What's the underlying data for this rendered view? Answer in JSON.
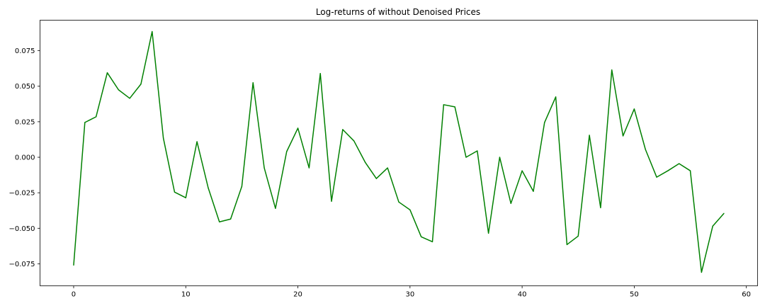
{
  "chart_data": {
    "type": "line",
    "title": "Log-returns of without Denoised Prices",
    "xlabel": "",
    "ylabel": "",
    "xlim": [
      -3,
      61
    ],
    "ylim": [
      -0.0905,
      0.0965
    ],
    "x_ticks": [
      0,
      10,
      20,
      30,
      40,
      50,
      60
    ],
    "x_tick_labels": [
      "0",
      "10",
      "20",
      "30",
      "40",
      "50",
      "60"
    ],
    "y_ticks": [
      0.075,
      0.05,
      0.025,
      0.0,
      -0.025,
      -0.05,
      -0.075
    ],
    "y_tick_labels": [
      "0.075",
      "0.050",
      "0.025",
      "0.000",
      "−0.025",
      "−0.050",
      "−0.075"
    ],
    "grid": false,
    "legend": "none",
    "series": [
      {
        "color": "#008000",
        "x": [
          0,
          1,
          2,
          3,
          4,
          5,
          6,
          7,
          8,
          9,
          10,
          11,
          12,
          13,
          14,
          15,
          16,
          17,
          18,
          19,
          20,
          21,
          22,
          23,
          24,
          25,
          26,
          27,
          28,
          29,
          30,
          31,
          32,
          33,
          34,
          35,
          36,
          37,
          38,
          39,
          40,
          41,
          42,
          43,
          44,
          45,
          46,
          47,
          48,
          49,
          50,
          51,
          52,
          53,
          54,
          55,
          56,
          57,
          58
        ],
        "y": [
          -0.076,
          0.0245,
          0.0285,
          0.0595,
          0.0475,
          0.0415,
          0.0515,
          0.0885,
          0.0135,
          -0.0245,
          -0.0285,
          0.011,
          -0.0215,
          -0.0455,
          -0.0435,
          -0.0205,
          0.0525,
          -0.0075,
          -0.036,
          0.004,
          0.0205,
          -0.0075,
          0.059,
          -0.031,
          0.0195,
          0.0115,
          -0.0035,
          -0.015,
          -0.0075,
          -0.0315,
          -0.037,
          -0.056,
          -0.0595,
          0.037,
          0.0355,
          0.0,
          0.0045,
          -0.0535,
          0.0,
          -0.0325,
          -0.0095,
          -0.024,
          0.0245,
          0.0425,
          -0.0615,
          -0.0555,
          0.0155,
          -0.0355,
          0.0615,
          0.015,
          0.034,
          0.0055,
          -0.014,
          -0.0095,
          -0.0045,
          -0.0095,
          -0.081,
          -0.0485,
          -0.0395
        ]
      }
    ]
  }
}
